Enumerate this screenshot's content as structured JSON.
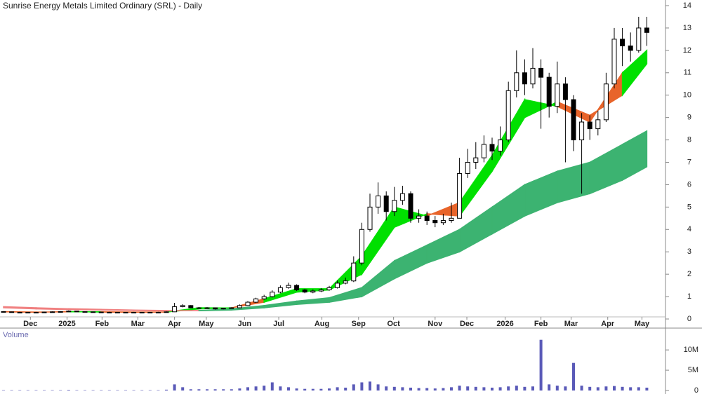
{
  "chart_data": {
    "type": "candlestick",
    "title": "Sunrise Energy Metals Limited Ordinary (SRL) - Daily",
    "xlim": [
      0,
      80
    ],
    "xticks": [
      {
        "value": 3.3,
        "label": "Dec"
      },
      {
        "value": 7.8,
        "label": "2025"
      },
      {
        "value": 12.1,
        "label": "Feb"
      },
      {
        "value": 16.5,
        "label": "Mar"
      },
      {
        "value": 21,
        "label": "Apr"
      },
      {
        "value": 24.9,
        "label": "May"
      },
      {
        "value": 29.6,
        "label": "Jun"
      },
      {
        "value": 33.8,
        "label": "Jul"
      },
      {
        "value": 39.1,
        "label": "Aug"
      },
      {
        "value": 43.6,
        "label": "Sep"
      },
      {
        "value": 47.9,
        "label": "Oct"
      },
      {
        "value": 53,
        "label": "Nov"
      },
      {
        "value": 56.9,
        "label": "Dec"
      },
      {
        "value": 61.6,
        "label": "2026"
      },
      {
        "value": 66,
        "label": "Feb"
      },
      {
        "value": 69.7,
        "label": "Mar"
      },
      {
        "value": 74.2,
        "label": "Apr"
      },
      {
        "value": 78.4,
        "label": "May"
      }
    ],
    "ylim": [
      0,
      14
    ],
    "yticks": [
      0,
      1,
      2,
      3,
      4,
      5,
      6,
      7,
      8,
      9,
      10,
      11,
      12,
      13,
      14
    ],
    "x": [
      0,
      1,
      2,
      3,
      4,
      5,
      6,
      7,
      8,
      9,
      10,
      11,
      12,
      13,
      14,
      15,
      16,
      17,
      18,
      19,
      20,
      21,
      22,
      23,
      24,
      25,
      26,
      27,
      28,
      29,
      30,
      31,
      32,
      33,
      34,
      35,
      36,
      37,
      38,
      39,
      40,
      41,
      42,
      43,
      44,
      45,
      46,
      47,
      48,
      49,
      50,
      51,
      52,
      53,
      54,
      55,
      56,
      57,
      58,
      59,
      60,
      61,
      62,
      63,
      64,
      65,
      66,
      67,
      68,
      69,
      70,
      71,
      72,
      73,
      74,
      75,
      76,
      77,
      78,
      79
    ],
    "ohlc": [
      [
        0.33,
        0.35,
        0.3,
        0.32
      ],
      [
        0.32,
        0.33,
        0.29,
        0.3
      ],
      [
        0.3,
        0.32,
        0.28,
        0.3
      ],
      [
        0.3,
        0.31,
        0.28,
        0.29
      ],
      [
        0.29,
        0.31,
        0.28,
        0.3
      ],
      [
        0.3,
        0.33,
        0.29,
        0.31
      ],
      [
        0.31,
        0.34,
        0.3,
        0.32
      ],
      [
        0.32,
        0.35,
        0.31,
        0.33
      ],
      [
        0.33,
        0.38,
        0.32,
        0.35
      ],
      [
        0.35,
        0.36,
        0.32,
        0.33
      ],
      [
        0.33,
        0.34,
        0.31,
        0.32
      ],
      [
        0.32,
        0.33,
        0.3,
        0.31
      ],
      [
        0.31,
        0.32,
        0.29,
        0.3
      ],
      [
        0.3,
        0.32,
        0.29,
        0.3
      ],
      [
        0.3,
        0.31,
        0.28,
        0.29
      ],
      [
        0.29,
        0.31,
        0.28,
        0.3
      ],
      [
        0.3,
        0.31,
        0.28,
        0.3
      ],
      [
        0.3,
        0.31,
        0.27,
        0.29
      ],
      [
        0.29,
        0.31,
        0.28,
        0.3
      ],
      [
        0.3,
        0.32,
        0.29,
        0.3
      ],
      [
        0.3,
        0.34,
        0.29,
        0.32
      ],
      [
        0.32,
        0.72,
        0.31,
        0.55
      ],
      [
        0.55,
        0.66,
        0.52,
        0.6
      ],
      [
        0.6,
        0.62,
        0.48,
        0.5
      ],
      [
        0.5,
        0.53,
        0.45,
        0.48
      ],
      [
        0.48,
        0.53,
        0.46,
        0.5
      ],
      [
        0.5,
        0.51,
        0.42,
        0.45
      ],
      [
        0.45,
        0.5,
        0.43,
        0.48
      ],
      [
        0.48,
        0.52,
        0.46,
        0.5
      ],
      [
        0.5,
        0.65,
        0.49,
        0.6
      ],
      [
        0.6,
        0.8,
        0.58,
        0.75
      ],
      [
        0.75,
        0.95,
        0.72,
        0.9
      ],
      [
        0.9,
        1.08,
        0.86,
        1.0
      ],
      [
        1.0,
        1.28,
        0.96,
        1.2
      ],
      [
        1.2,
        1.5,
        1.15,
        1.4
      ],
      [
        1.4,
        1.62,
        1.35,
        1.5
      ],
      [
        1.5,
        1.55,
        1.25,
        1.3
      ],
      [
        1.3,
        1.35,
        1.15,
        1.2
      ],
      [
        1.2,
        1.32,
        1.15,
        1.25
      ],
      [
        1.25,
        1.38,
        1.2,
        1.3
      ],
      [
        1.3,
        1.48,
        1.26,
        1.4
      ],
      [
        1.4,
        1.72,
        1.36,
        1.6
      ],
      [
        1.6,
        1.85,
        1.55,
        1.7
      ],
      [
        1.7,
        2.8,
        1.65,
        2.5
      ],
      [
        2.5,
        4.3,
        2.4,
        4.0
      ],
      [
        4.0,
        5.6,
        3.9,
        5.0
      ],
      [
        5.0,
        6.1,
        4.7,
        5.5
      ],
      [
        5.5,
        5.7,
        4.4,
        4.8
      ],
      [
        4.8,
        5.9,
        4.6,
        5.3
      ],
      [
        5.3,
        5.95,
        5.1,
        5.6
      ],
      [
        5.6,
        5.7,
        4.3,
        4.5
      ],
      [
        4.5,
        4.9,
        4.3,
        4.6
      ],
      [
        4.6,
        4.8,
        4.2,
        4.4
      ],
      [
        4.4,
        4.6,
        4.1,
        4.3
      ],
      [
        4.3,
        4.7,
        4.2,
        4.4
      ],
      [
        4.4,
        5.2,
        4.3,
        4.5
      ],
      [
        4.5,
        7.2,
        4.5,
        6.5
      ],
      [
        6.5,
        7.6,
        6.3,
        7.0
      ],
      [
        7.0,
        7.9,
        6.7,
        7.2
      ],
      [
        7.2,
        8.2,
        7.0,
        7.8
      ],
      [
        7.8,
        8.1,
        7.1,
        7.5
      ],
      [
        7.5,
        8.6,
        7.3,
        8.0
      ],
      [
        8.0,
        10.6,
        7.9,
        10.2
      ],
      [
        10.2,
        12.0,
        9.9,
        11.0
      ],
      [
        11.0,
        11.6,
        10.0,
        10.5
      ],
      [
        10.5,
        12.1,
        10.3,
        11.2
      ],
      [
        11.2,
        11.6,
        8.5,
        10.8
      ],
      [
        10.8,
        11.0,
        9.0,
        9.5
      ],
      [
        9.5,
        11.5,
        9.2,
        10.5
      ],
      [
        10.5,
        10.8,
        7.0,
        9.8
      ],
      [
        9.8,
        10.0,
        7.5,
        8.0
      ],
      [
        8.0,
        9.2,
        5.6,
        8.8
      ],
      [
        8.8,
        9.1,
        8.0,
        8.5
      ],
      [
        8.5,
        9.3,
        8.2,
        8.9
      ],
      [
        8.9,
        11.0,
        8.8,
        10.5
      ],
      [
        10.5,
        13.0,
        10.3,
        12.5
      ],
      [
        12.5,
        13.0,
        11.3,
        12.2
      ],
      [
        12.2,
        12.8,
        11.5,
        12.0
      ],
      [
        12.0,
        13.5,
        11.9,
        13.0
      ],
      [
        13.0,
        13.5,
        12.2,
        12.8
      ]
    ],
    "candle_color": "#000000",
    "ribbons": [
      {
        "x": [
          0,
          4,
          8,
          12,
          16,
          20,
          24,
          28,
          32,
          36,
          40,
          44,
          48,
          52,
          56,
          60,
          64,
          68,
          72,
          76,
          79
        ],
        "fast": [
          0.32,
          0.3,
          0.33,
          0.31,
          0.3,
          0.31,
          0.5,
          0.49,
          0.9,
          1.35,
          1.35,
          2.8,
          5.0,
          4.6,
          5.2,
          7.3,
          9.8,
          9.5,
          8.8,
          11.0,
          12.0
        ],
        "slow": [
          0.33,
          0.31,
          0.32,
          0.32,
          0.31,
          0.31,
          0.45,
          0.5,
          0.75,
          1.2,
          1.3,
          2.0,
          4.1,
          4.7,
          4.6,
          6.6,
          9.0,
          9.7,
          9.1,
          10.0,
          11.4
        ],
        "up_color": "#00e000",
        "down_color": "#e8642a"
      },
      {
        "x": [
          0,
          4,
          8,
          12,
          16,
          20,
          24,
          28,
          32,
          36,
          40,
          44,
          48,
          52,
          56,
          60,
          64,
          68,
          72,
          76,
          79
        ],
        "fast": [
          0.5,
          0.45,
          0.42,
          0.4,
          0.38,
          0.36,
          0.38,
          0.45,
          0.6,
          0.8,
          0.95,
          1.4,
          2.6,
          3.3,
          4.0,
          5.0,
          6.0,
          6.6,
          7.0,
          7.8,
          8.4
        ],
        "slow": [
          0.55,
          0.5,
          0.46,
          0.43,
          0.4,
          0.38,
          0.37,
          0.4,
          0.5,
          0.65,
          0.75,
          1.0,
          1.8,
          2.5,
          3.0,
          3.8,
          4.6,
          5.2,
          5.6,
          6.2,
          6.8
        ],
        "up_color": "#3cb371",
        "down_color": "#f08080"
      }
    ],
    "volume": {
      "label": "Volume",
      "color": "#5a5ab8",
      "ylim": [
        0,
        14
      ],
      "yticks": [
        0,
        {
          "value": 5,
          "label": "5M"
        },
        {
          "value": 10,
          "label": "10M"
        }
      ],
      "values": [
        0.1,
        0.1,
        0.1,
        0.1,
        0.1,
        0.1,
        0.1,
        0.1,
        0.15,
        0.1,
        0.1,
        0.1,
        0.1,
        0.1,
        0.1,
        0.1,
        0.1,
        0.1,
        0.1,
        0.1,
        0.2,
        1.5,
        0.8,
        0.3,
        0.3,
        0.3,
        0.3,
        0.3,
        0.3,
        0.5,
        0.8,
        1.0,
        1.2,
        2.0,
        1.0,
        0.8,
        0.5,
        0.4,
        0.4,
        0.4,
        0.5,
        0.8,
        0.7,
        1.5,
        2.0,
        2.2,
        1.5,
        1.0,
        0.9,
        0.8,
        0.7,
        0.6,
        0.6,
        0.5,
        0.6,
        0.8,
        1.2,
        1.0,
        0.9,
        0.8,
        0.7,
        0.8,
        1.0,
        1.2,
        0.9,
        1.0,
        12.5,
        1.5,
        1.2,
        1.0,
        6.8,
        1.2,
        0.9,
        0.8,
        1.0,
        1.1,
        0.9,
        0.8,
        0.8,
        0.7
      ]
    }
  }
}
